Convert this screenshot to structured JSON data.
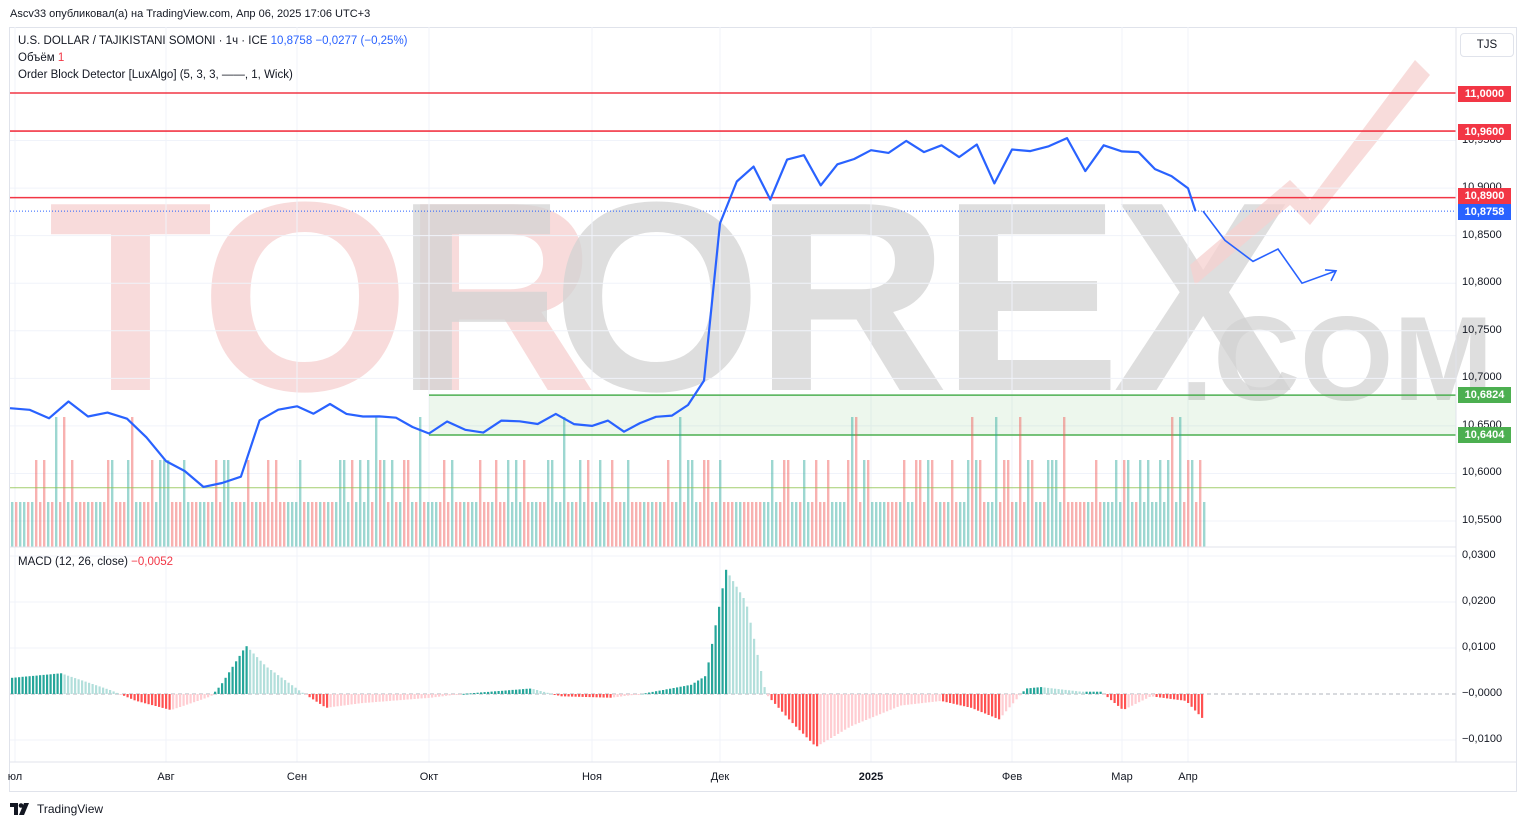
{
  "publisher_line": "Ascv33 опубликовал(а) на TradingView.com, Апр 06, 2025 17:06 UTC+3",
  "legend": {
    "symbol": "U.S. DOLLAR / TAJIKISTANI SOMONI · 1ч · ICE",
    "last": "10,8758",
    "change": "−0,0277 (−0,25%)",
    "volume_label": "Объём",
    "volume_value": "1",
    "indicator": "Order Block Detector [LuxAlgo] (5, 3, 3, ——, 1, Wick)"
  },
  "currency_button": "TJS",
  "price_tags": {
    "t11000": "11,0000",
    "t10960": "10,9600",
    "t10890": "10,8900",
    "tlast": "10,8758",
    "t10682": "10,6824",
    "t10640": "10,6404"
  },
  "y_axis_labels": [
    "10,9500",
    "10,9000",
    "10,8500",
    "10,8000",
    "10,7500",
    "10,7000",
    "10,6500",
    "10,6000",
    "10,5500"
  ],
  "macd": {
    "label": "MACD (12, 26, close)",
    "value": "−0,0052",
    "y_axis_labels": [
      "0,0300",
      "0,0200",
      "0,0100",
      "−0,0000",
      "−0,0100"
    ]
  },
  "x_axis_labels": [
    "юл",
    "Авг",
    "Сен",
    "Окт",
    "Ноя",
    "Дек",
    "2025",
    "Фев",
    "Мар",
    "Апр"
  ],
  "watermark": {
    "main": "TORFOREX",
    "suffix": ".COM"
  },
  "brand": "TradingView",
  "colors": {
    "price_line": "#2962ff",
    "resistance": "#f23645",
    "support": "#4caf50",
    "vol_up": "#26a69a",
    "vol_down": "#ef5350",
    "macd_up_strong": "#26a69a",
    "macd_up_weak": "#b2dfdb",
    "macd_down_strong": "#ff5252",
    "macd_down_weak": "#ffcdd2"
  },
  "chart_data": [
    {
      "type": "line",
      "x_labels": [
        "юл",
        "Авг",
        "Сен",
        "Окт",
        "Ноя",
        "Дек",
        "2025",
        "Фев",
        "Мар",
        "Апр"
      ],
      "series": [
        {
          "values": [
            [
              "Jul",
              10.666
            ],
            [
              "Jul",
              10.669
            ],
            [
              "Jul",
              10.658
            ],
            [
              "Jul",
              10.673
            ],
            [
              "Jul",
              10.662
            ],
            [
              "Jul",
              10.664
            ],
            [
              "Jul",
              10.655
            ],
            [
              "Jul",
              10.64
            ],
            [
              "Aug",
              10.613
            ],
            [
              "Aug",
              10.6
            ],
            [
              "Aug",
              10.588
            ],
            [
              "Aug",
              10.59
            ],
            [
              "Aug",
              10.594
            ],
            [
              "Aug",
              10.658
            ],
            [
              "Aug",
              10.667
            ],
            [
              "Sep",
              10.668
            ],
            [
              "Sep",
              10.665
            ],
            [
              "Sep",
              10.673
            ],
            [
              "Sep",
              10.66
            ],
            [
              "Sep",
              10.662
            ],
            [
              "Sep",
              10.66
            ],
            [
              "Sep",
              10.656
            ],
            [
              "Sep",
              10.651
            ],
            [
              "Oct",
              10.642
            ],
            [
              "Oct",
              10.652
            ],
            [
              "Oct",
              10.648
            ],
            [
              "Oct",
              10.643
            ],
            [
              "Oct",
              10.653
            ],
            [
              "Oct",
              10.657
            ],
            [
              "Oct",
              10.652
            ],
            [
              "Oct",
              10.66
            ],
            [
              "Oct",
              10.654
            ],
            [
              "Nov",
              10.65
            ],
            [
              "Nov",
              10.653
            ],
            [
              "Nov",
              10.646
            ],
            [
              "Nov",
              10.653
            ],
            [
              "Nov",
              10.657
            ],
            [
              "Nov",
              10.663
            ],
            [
              "Nov",
              10.672
            ],
            [
              "Nov",
              10.695
            ],
            [
              "Dec",
              10.865
            ],
            [
              "Dec",
              10.907
            ],
            [
              "Dec",
              10.92
            ],
            [
              "Dec",
              10.89
            ],
            [
              "Dec",
              10.93
            ],
            [
              "Dec",
              10.932
            ],
            [
              "Dec",
              10.905
            ],
            [
              "Dec",
              10.925
            ],
            [
              "Dec",
              10.928
            ],
            [
              "Jan",
              10.942
            ],
            [
              "Jan",
              10.937
            ],
            [
              "Jan",
              10.947
            ],
            [
              "Jan",
              10.94
            ],
            [
              "Jan",
              10.945
            ],
            [
              "Jan",
              10.93
            ],
            [
              "Jan",
              10.948
            ],
            [
              "Jan",
              10.905
            ],
            [
              "Feb",
              10.938
            ],
            [
              "Feb",
              10.941
            ],
            [
              "Feb",
              10.944
            ],
            [
              "Feb",
              10.95
            ],
            [
              "Feb",
              10.92
            ],
            [
              "Feb",
              10.945
            ],
            [
              "Mar",
              10.936
            ],
            [
              "Mar",
              10.94
            ],
            [
              "Mar",
              10.92
            ],
            [
              "Mar",
              10.91
            ],
            [
              "Apr",
              10.902
            ],
            [
              "Apr",
              10.8758
            ]
          ]
        }
      ],
      "forecast_path": [
        10.8758,
        10.845,
        10.823,
        10.836,
        10.8,
        10.813
      ],
      "ylim": [
        10.53,
        11.01
      ],
      "horizontal_levels": {
        "resistance": [
          11.0,
          10.96,
          10.89
        ],
        "order_block_top": 10.6824,
        "order_block_bottom": 10.6404,
        "volume_ma_line": 10.585
      }
    },
    {
      "type": "bar",
      "series": [
        {
          "name": "MACD (12, 26, close)"
        }
      ],
      "ylim": [
        -0.0115,
        0.03
      ],
      "last_value": -0.0052
    }
  ]
}
